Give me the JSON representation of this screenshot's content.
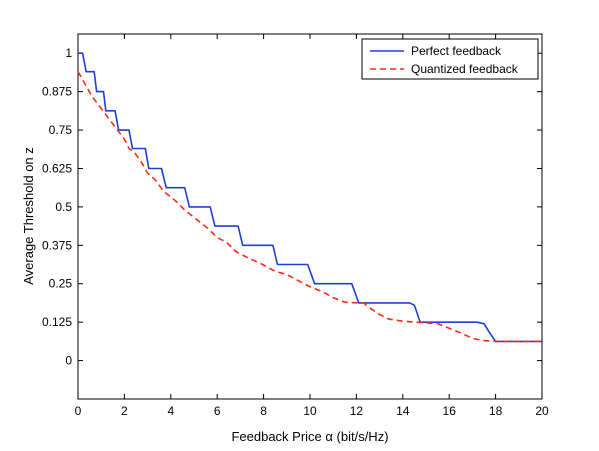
{
  "chart_data": {
    "type": "line",
    "xlabel": "Feedback Price α (bit/s/Hz)",
    "ylabel": "Average Threshold on z",
    "xlim": [
      0,
      20
    ],
    "ylim": [
      -0.125,
      1.0625
    ],
    "x_ticks": [
      0,
      2,
      4,
      6,
      8,
      10,
      12,
      14,
      16,
      18,
      20
    ],
    "x_tick_labels": [
      "0",
      "2",
      "4",
      "6",
      "8",
      "10",
      "12",
      "14",
      "16",
      "18",
      "20"
    ],
    "y_ticks": [
      0,
      0.125,
      0.25,
      0.375,
      0.5,
      0.625,
      0.75,
      0.875,
      1
    ],
    "y_tick_labels": [
      "0",
      "0.125",
      "0.25",
      "0.375",
      "0.5",
      "0.625",
      "0.75",
      "0.875",
      "1"
    ],
    "grid": false,
    "legend_position": "top-right",
    "series": [
      {
        "name": "Perfect feedback",
        "color": "#1f3fd6",
        "style": "solid",
        "points": [
          [
            0,
            1.0
          ],
          [
            0.2,
            1.0
          ],
          [
            0.35,
            0.94
          ],
          [
            0.7,
            0.94
          ],
          [
            0.8,
            0.875
          ],
          [
            1.1,
            0.875
          ],
          [
            1.2,
            0.8125
          ],
          [
            1.6,
            0.8125
          ],
          [
            1.75,
            0.75
          ],
          [
            2.2,
            0.75
          ],
          [
            2.35,
            0.69
          ],
          [
            2.9,
            0.69
          ],
          [
            3.05,
            0.625
          ],
          [
            3.6,
            0.625
          ],
          [
            3.8,
            0.5625
          ],
          [
            4.6,
            0.5625
          ],
          [
            4.8,
            0.5
          ],
          [
            5.7,
            0.5
          ],
          [
            5.9,
            0.4375
          ],
          [
            6.9,
            0.4375
          ],
          [
            7.1,
            0.375
          ],
          [
            8.4,
            0.375
          ],
          [
            8.6,
            0.3125
          ],
          [
            9.9,
            0.3125
          ],
          [
            10.2,
            0.25
          ],
          [
            11.8,
            0.25
          ],
          [
            12.1,
            0.1875
          ],
          [
            14.3,
            0.1875
          ],
          [
            14.5,
            0.18
          ],
          [
            14.75,
            0.125
          ],
          [
            17.2,
            0.125
          ],
          [
            17.5,
            0.12
          ],
          [
            17.75,
            0.09
          ],
          [
            18.0,
            0.0625
          ],
          [
            20.0,
            0.0625
          ]
        ]
      },
      {
        "name": "Quantized feedback",
        "color": "#ff2a12",
        "style": "dashed",
        "points": [
          [
            0,
            0.94
          ],
          [
            0.3,
            0.9
          ],
          [
            0.6,
            0.86
          ],
          [
            1.0,
            0.82
          ],
          [
            1.2,
            0.8
          ],
          [
            1.5,
            0.77
          ],
          [
            1.8,
            0.74
          ],
          [
            2.0,
            0.72
          ],
          [
            2.2,
            0.69
          ],
          [
            2.4,
            0.68
          ],
          [
            2.7,
            0.65
          ],
          [
            3.0,
            0.61
          ],
          [
            3.3,
            0.59
          ],
          [
            3.7,
            0.55
          ],
          [
            4.2,
            0.52
          ],
          [
            4.6,
            0.49
          ],
          [
            5.1,
            0.46
          ],
          [
            5.6,
            0.43
          ],
          [
            6.0,
            0.4
          ],
          [
            6.4,
            0.385
          ],
          [
            6.8,
            0.355
          ],
          [
            7.3,
            0.335
          ],
          [
            7.9,
            0.315
          ],
          [
            8.5,
            0.29
          ],
          [
            9.0,
            0.28
          ],
          [
            9.5,
            0.26
          ],
          [
            10.0,
            0.24
          ],
          [
            10.5,
            0.225
          ],
          [
            11.0,
            0.205
          ],
          [
            11.5,
            0.19
          ],
          [
            12.0,
            0.188
          ],
          [
            12.3,
            0.188
          ],
          [
            12.6,
            0.17
          ],
          [
            13.0,
            0.15
          ],
          [
            13.4,
            0.135
          ],
          [
            14.0,
            0.128
          ],
          [
            14.6,
            0.125
          ],
          [
            15.5,
            0.12
          ],
          [
            16.0,
            0.105
          ],
          [
            16.5,
            0.09
          ],
          [
            17.0,
            0.072
          ],
          [
            17.5,
            0.065
          ],
          [
            18.0,
            0.0625
          ],
          [
            20.0,
            0.0625
          ]
        ]
      }
    ]
  }
}
